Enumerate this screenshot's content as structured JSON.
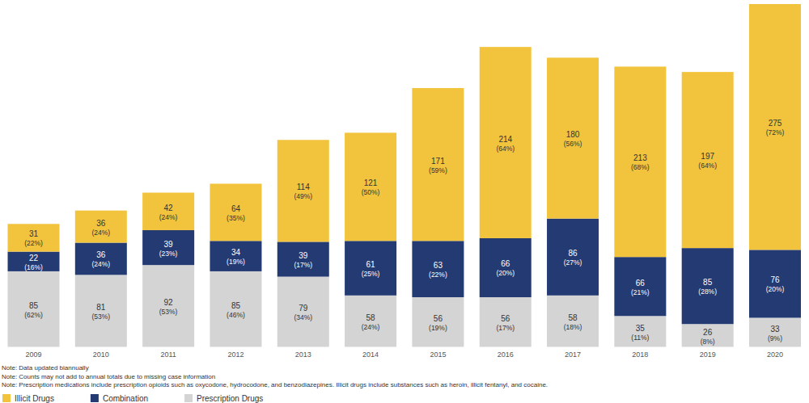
{
  "chart_data": {
    "type": "bar",
    "stacked": true,
    "data_labels": true,
    "tick_labels": "x",
    "grid": false,
    "legend": "bottom-left",
    "categories": [
      "2009",
      "2010",
      "2011",
      "2012",
      "2013",
      "2014",
      "2015",
      "2016",
      "2017",
      "2018",
      "2019",
      "2020"
    ],
    "ylim": [
      0,
      384
    ],
    "series": [
      {
        "name": "Prescription Drugs",
        "color": "#d4d4d4",
        "values": [
          85,
          81,
          92,
          85,
          79,
          58,
          56,
          56,
          58,
          35,
          26,
          33
        ],
        "shares": [
          62,
          53,
          53,
          46,
          34,
          24,
          19,
          17,
          18,
          11,
          8,
          9
        ],
        "share_labels": [
          "(62%)",
          "(53%)",
          "(53%)",
          "(46%)",
          "(34%)",
          "(24%)",
          "(19%)",
          "(17%)",
          "(18%)",
          "(11%)",
          "(8%)",
          "(9%)"
        ]
      },
      {
        "name": "Combination",
        "color": "#243a73",
        "values": [
          22,
          36,
          39,
          34,
          39,
          61,
          63,
          66,
          86,
          66,
          85,
          76
        ],
        "shares": [
          16,
          24,
          23,
          19,
          17,
          25,
          22,
          20,
          27,
          21,
          28,
          20
        ],
        "share_labels": [
          "(16%)",
          "(24%)",
          "(23%)",
          "(19%)",
          "(17%)",
          "(25%)",
          "(22%)",
          "(20%)",
          "(27%)",
          "(21%)",
          "(28%)",
          "(20%)"
        ]
      },
      {
        "name": "Illicit Drugs",
        "color": "#f2c43d",
        "values": [
          31,
          36,
          42,
          64,
          114,
          121,
          171,
          214,
          180,
          213,
          197,
          275
        ],
        "shares": [
          22,
          24,
          24,
          35,
          49,
          50,
          59,
          64,
          56,
          68,
          64,
          72
        ],
        "share_labels": [
          "(22%)",
          "(24%)",
          "(24%)",
          "(35%)",
          "(49%)",
          "(50%)",
          "(59%)",
          "(64%)",
          "(56%)",
          "(68%)",
          "(64%)",
          "(72%)"
        ]
      }
    ],
    "notes": [
      "Note: Data updated biannually",
      "Note: Counts may not add to annual totals due to missing case information",
      "Note: Prescription medications include prescription opioids such as oxycodone, hydrocodone, and benzodiazepines. Illicit drugs include substances such as heroin, illicit fentanyl, and cocaine."
    ]
  }
}
